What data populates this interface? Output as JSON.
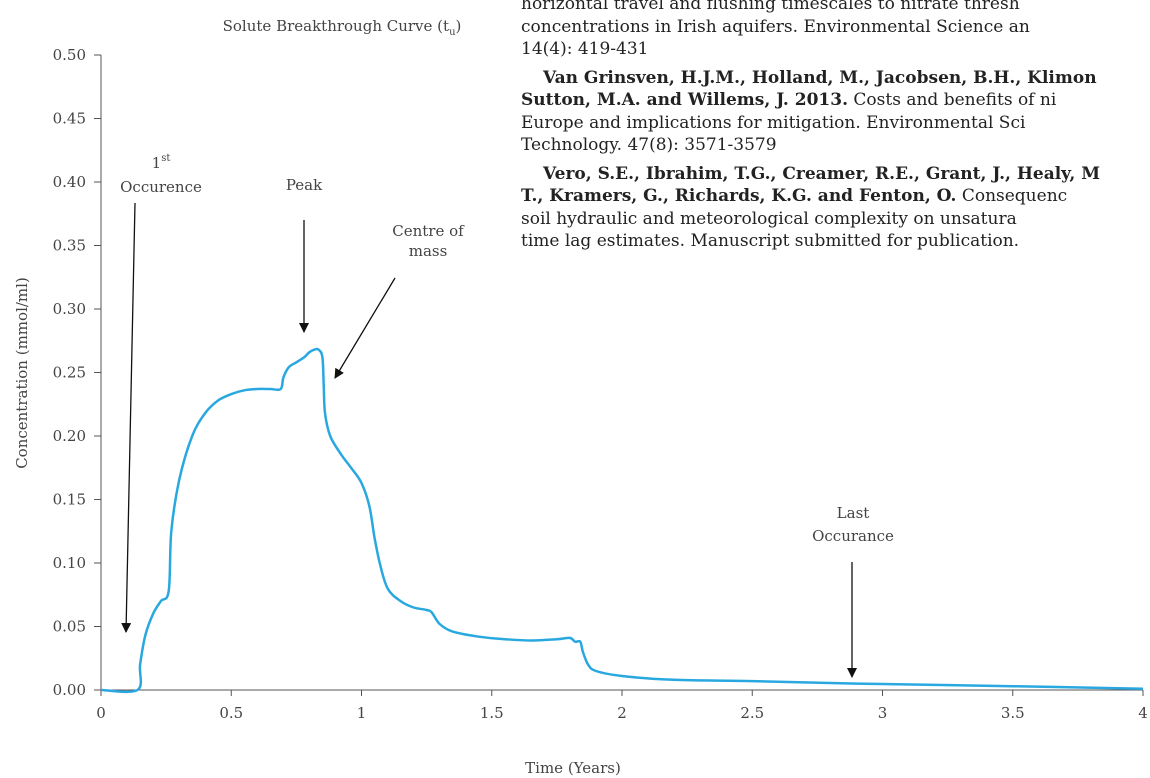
{
  "chart_data": {
    "type": "line",
    "title": "Solute Breakthrough Curve (t",
    "title_subscript": "u",
    "title_close": ")",
    "xlabel": "Time (Years)",
    "ylabel": "Concentration (mmol/ml)",
    "xlim": [
      0,
      4
    ],
    "ylim": [
      0,
      0.5
    ],
    "x_ticks": [
      0,
      0.5,
      1,
      1.5,
      2,
      2.5,
      3,
      3.5,
      4
    ],
    "x_tick_labels": [
      "0",
      "0.5",
      "1",
      "1.5",
      "2",
      "2.5",
      "3",
      "3.5",
      "4"
    ],
    "y_ticks": [
      0,
      0.05,
      0.1,
      0.15,
      0.2,
      0.25,
      0.3,
      0.35,
      0.4,
      0.45,
      0.5
    ],
    "y_tick_labels": [
      "0.00",
      "0.05",
      "0.10",
      "0.15",
      "0.20",
      "0.25",
      "0.30",
      "0.35",
      "0.40",
      "0.45",
      "0.50"
    ],
    "grid": false,
    "series": [
      {
        "color": "#29a8e0",
        "x": [
          0,
          0.14,
          0.15,
          0.17,
          0.2,
          0.23,
          0.26,
          0.27,
          0.3,
          0.35,
          0.4,
          0.45,
          0.5,
          0.55,
          0.6,
          0.65,
          0.69,
          0.7,
          0.72,
          0.75,
          0.78,
          0.8,
          0.82,
          0.835,
          0.85,
          0.855,
          0.86,
          0.88,
          0.92,
          0.96,
          1.0,
          1.03,
          1.05,
          1.07,
          1.1,
          1.15,
          1.2,
          1.25,
          1.27,
          1.3,
          1.35,
          1.45,
          1.55,
          1.65,
          1.75,
          1.8,
          1.82,
          1.84,
          1.85,
          1.87,
          1.9,
          2.0,
          2.2,
          2.5,
          2.9,
          3.5,
          4.0
        ],
        "y": [
          0.0,
          0.0,
          0.02,
          0.043,
          0.06,
          0.07,
          0.078,
          0.125,
          0.165,
          0.2,
          0.218,
          0.228,
          0.233,
          0.236,
          0.237,
          0.237,
          0.237,
          0.246,
          0.254,
          0.258,
          0.262,
          0.266,
          0.268,
          0.268,
          0.262,
          0.24,
          0.218,
          0.2,
          0.186,
          0.175,
          0.163,
          0.145,
          0.12,
          0.1,
          0.08,
          0.07,
          0.065,
          0.063,
          0.061,
          0.052,
          0.046,
          0.042,
          0.04,
          0.039,
          0.04,
          0.041,
          0.038,
          0.038,
          0.03,
          0.02,
          0.015,
          0.011,
          0.008,
          0.007,
          0.005,
          0.003,
          0.001
        ]
      }
    ],
    "annotations": [
      {
        "id": "first",
        "lines": [
          "1",
          "Occurence"
        ],
        "superscript": "st",
        "x": 0.11,
        "y": 0.045
      },
      {
        "id": "peak",
        "lines": [
          "Peak"
        ],
        "x": 0.78,
        "y": 0.28
      },
      {
        "id": "centre",
        "lines": [
          "Centre of",
          "mass"
        ],
        "x": 0.9,
        "y": 0.245
      },
      {
        "id": "last",
        "lines": [
          "Last",
          "Occurance"
        ],
        "x": 2.88,
        "y": 0.01
      }
    ]
  },
  "references": [
    {
      "lines": [
        {
          "plain": "horizontal travel and flushing timescales to nitrate thresh"
        },
        {
          "plain": "concentrations in Irish aquifers. Environmental Science an"
        },
        {
          "plain": "14(4): 419-431"
        }
      ]
    },
    {
      "lines": [
        {
          "bold": "Van Grinsven, H.J.M., Holland, M., Jacobsen, B.H., Klimon"
        },
        {
          "bold": "Sutton, M.A. and Willems, J. 2013.",
          "plain": " Costs and benefits of ni"
        },
        {
          "plain": "Europe and implications for mitigation. Environmental Sci"
        },
        {
          "plain": "Technology. 47(8): 3571-3579"
        }
      ]
    },
    {
      "lines": [
        {
          "bold": "Vero, S.E., Ibrahim, T.G., Creamer, R.E., Grant, J., Healy, M"
        },
        {
          "bold": "T., Kramers, G., Richards, K.G. and Fenton, O.",
          "plain": " Consequenc"
        },
        {
          "plain": "soil hydraulic and meteorological complexity on unsatura"
        },
        {
          "plain": "time lag estimates. Manuscript submitted for publication."
        }
      ]
    }
  ]
}
